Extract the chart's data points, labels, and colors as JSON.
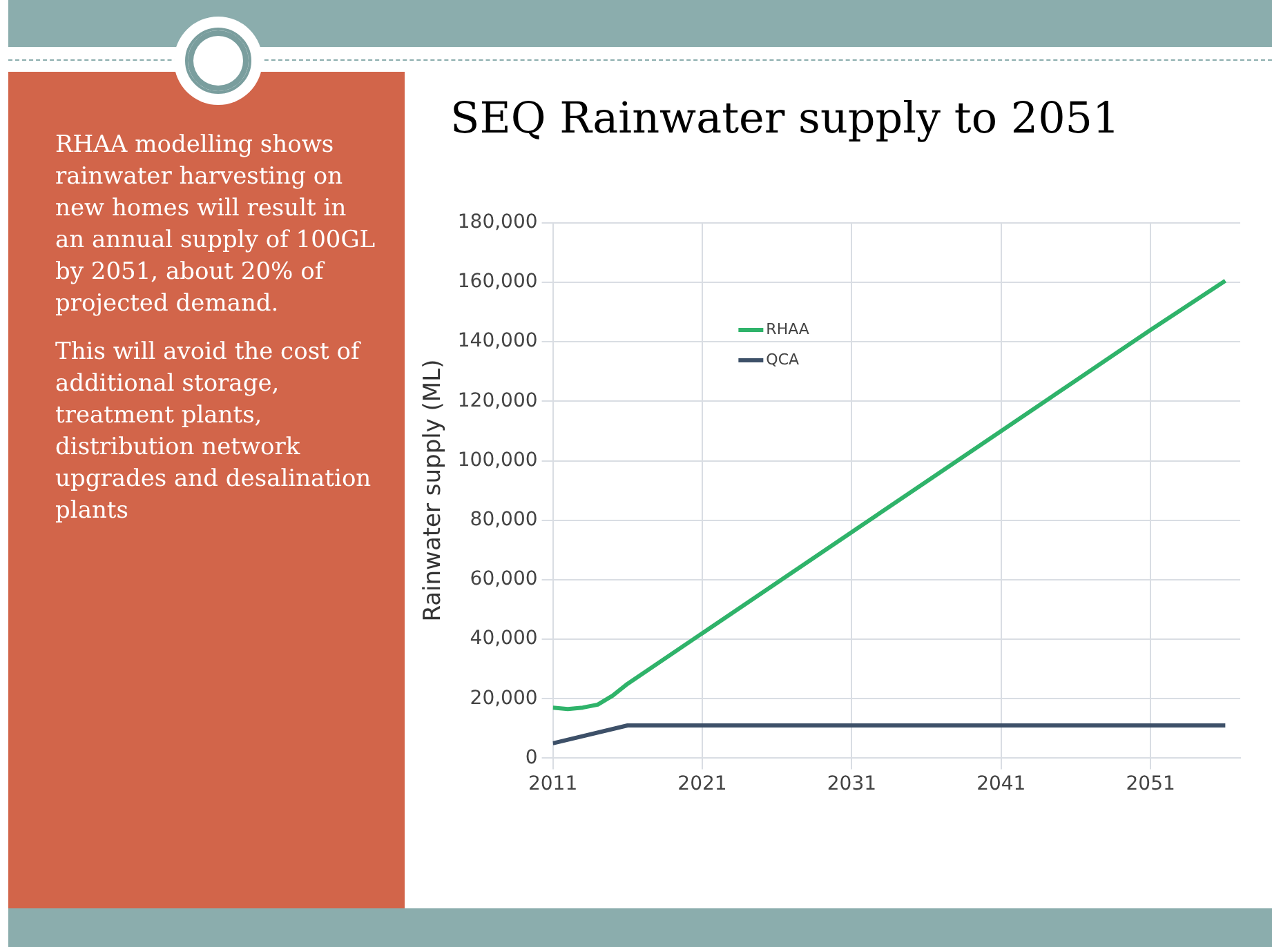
{
  "chart_data": {
    "type": "line",
    "title": "SEQ Rainwater supply to 2051",
    "ylabel": "Rainwater supply (ML)",
    "annotations": [
      "RHAA modelling shows rainwater harvesting on new homes will result in an annual supply of 100GL by 2051, about 20% of projected demand.",
      "This will avoid the cost of additional storage, treatment plants, distribution network upgrades and desalination plants"
    ],
    "series": [
      {
        "name": "RHAA",
        "color": "#2fb36a",
        "x": [
          2011,
          2012,
          2013,
          2014,
          2015,
          2016,
          2021,
          2026,
          2031,
          2036,
          2041,
          2046,
          2051,
          2056
        ],
        "values": [
          17000,
          16500,
          17000,
          18000,
          21000,
          25000,
          42000,
          59000,
          76000,
          93000,
          110000,
          127000,
          144000,
          160500
        ]
      },
      {
        "name": "QCA",
        "color": "#3d5068",
        "x": [
          2011,
          2016,
          2021,
          2031,
          2041,
          2051,
          2056
        ],
        "values": [
          5000,
          11000,
          11000,
          11000,
          11000,
          11000,
          11000
        ]
      }
    ],
    "xlim": [
      2011,
      2057
    ],
    "xticks": [
      2011,
      2021,
      2031,
      2041,
      2051
    ],
    "ylim": [
      0,
      180000
    ],
    "yticks": [
      0,
      {
        "value": 20000,
        "label": "20,000"
      },
      {
        "value": 40000,
        "label": "40,000"
      },
      {
        "value": 60000,
        "label": "60,000"
      },
      {
        "value": 80000,
        "label": "80,000"
      },
      {
        "value": 100000,
        "label": "100,000"
      },
      {
        "value": 120000,
        "label": "120,000"
      },
      {
        "value": 140000,
        "label": "140,000"
      },
      {
        "value": 160000,
        "label": "160,000"
      },
      {
        "value": 180000,
        "label": "180,000"
      }
    ],
    "grid": true,
    "legend": "top left",
    "marker": "none",
    "line_style": "solid"
  }
}
